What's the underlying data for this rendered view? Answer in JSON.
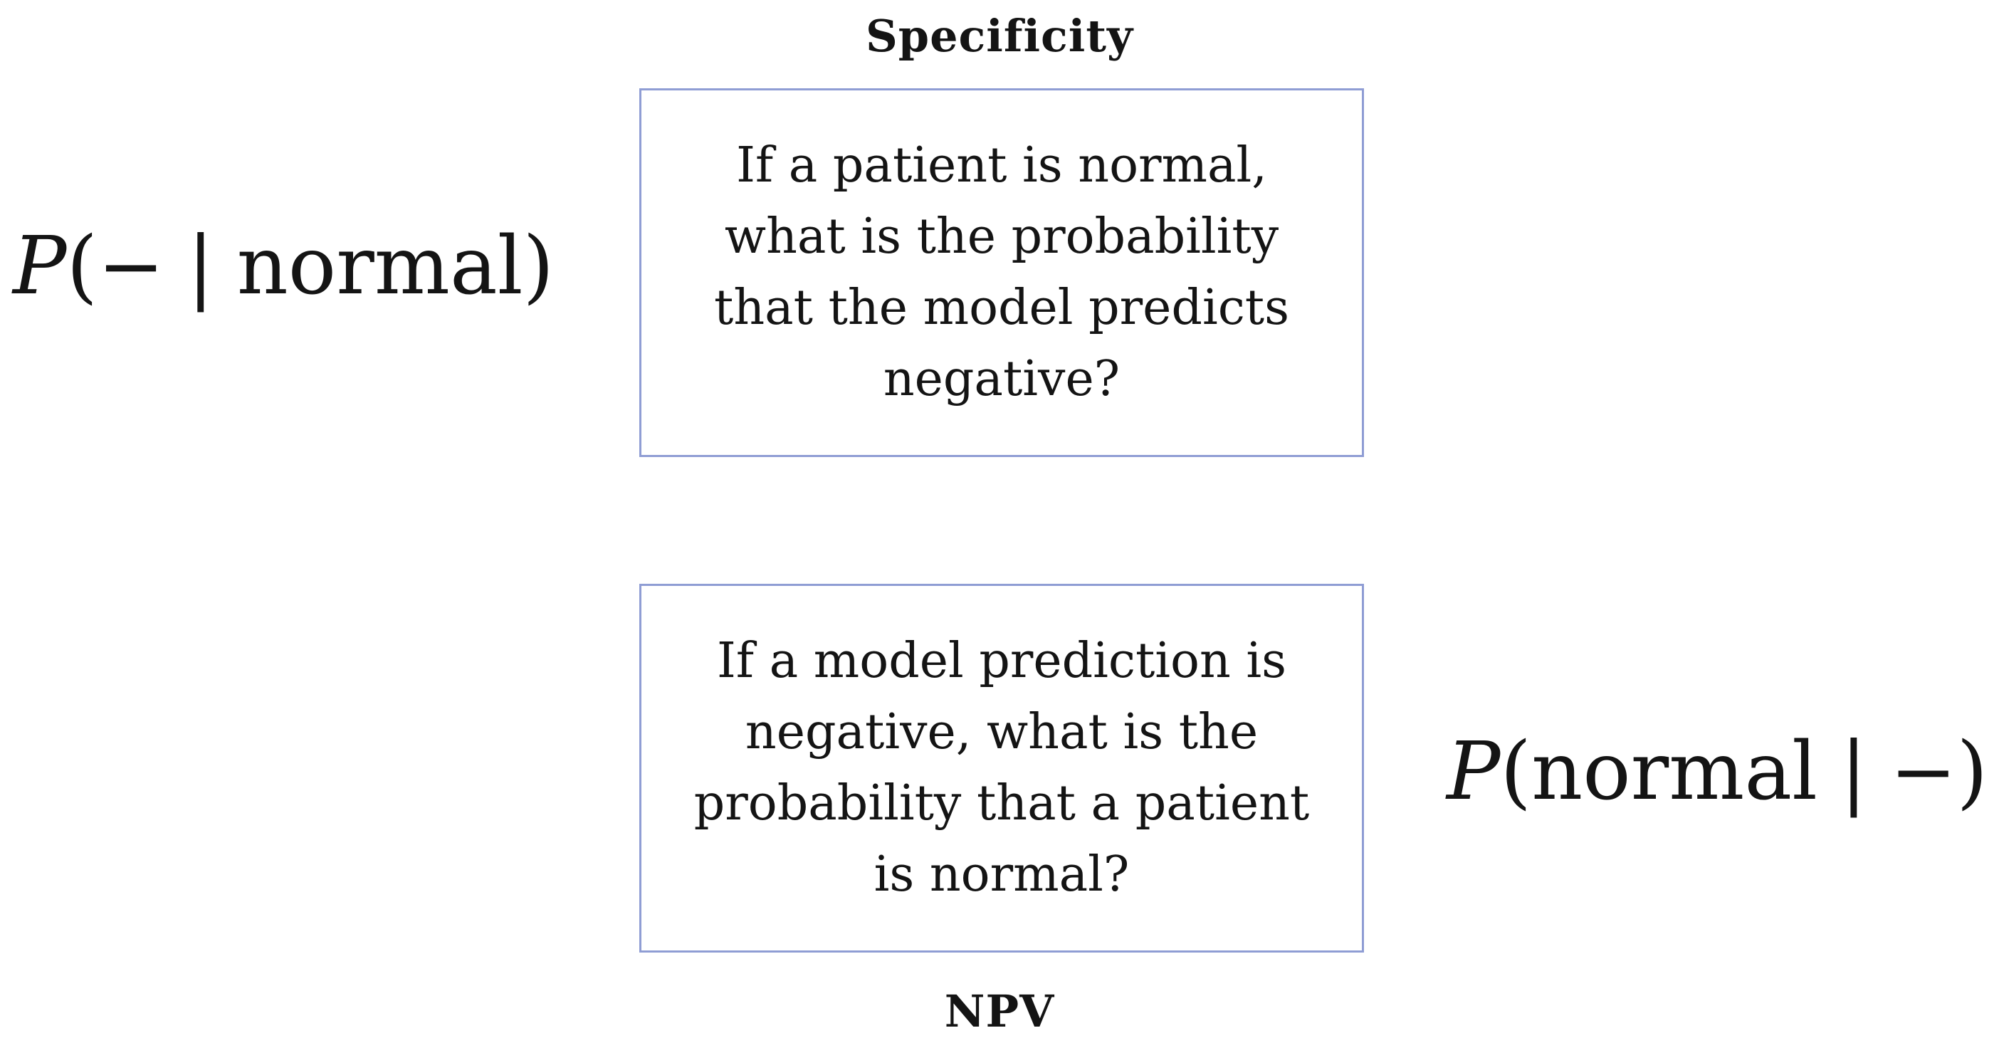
{
  "specificity": {
    "heading": "Specificity",
    "question": "If a patient is normal, what is the probability that the model predicts negative?",
    "formula": {
      "variable": "P",
      "open": "(",
      "event": "−",
      "bar": "|",
      "condition": "normal",
      "close": ")"
    }
  },
  "npv": {
    "heading": "NPV",
    "question": "If a model prediction is negative, what is the probability that a patient is normal?",
    "formula": {
      "variable": "P",
      "open": "(",
      "event": "normal",
      "bar": "|",
      "condition": "−",
      "close": ")"
    }
  },
  "colors": {
    "box_border": "#8f9dd4",
    "text": "#141414"
  }
}
